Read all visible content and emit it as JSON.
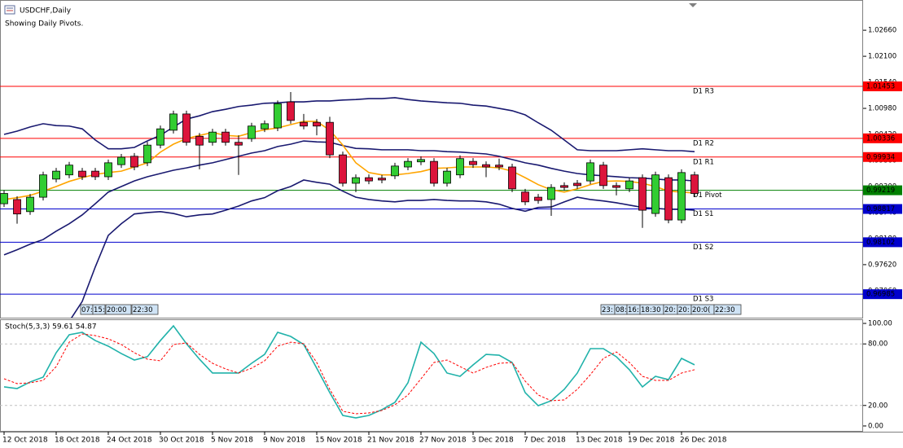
{
  "window": {
    "symbol_label": "USDCHF,Daily",
    "pivot_note": "Showing Daily Pivots."
  },
  "time_markers_left": [
    "07:",
    "15:",
    "20:00",
    "22:30"
  ],
  "time_markers_right": [
    "23:",
    "08:",
    "16:",
    "18:30",
    "20:",
    "20:",
    "20:0(",
    "22:30"
  ],
  "chart_data": [
    {
      "type": "candlestick",
      "categories": [
        "12 Oct 2018",
        null,
        null,
        null,
        "18 Oct 2018",
        null,
        null,
        null,
        "24 Oct 2018",
        null,
        null,
        null,
        "30 Oct 2018",
        null,
        null,
        null,
        "5 Nov 2018",
        null,
        null,
        null,
        "9 Nov 2018",
        null,
        null,
        null,
        "15 Nov 2018",
        null,
        null,
        null,
        "21 Nov 2018",
        null,
        null,
        null,
        "27 Nov 2018",
        null,
        null,
        null,
        "3 Dec 2018",
        null,
        null,
        null,
        "7 Dec 2018",
        null,
        null,
        null,
        "13 Dec 2018",
        null,
        null,
        null,
        "19 Dec 2018",
        null,
        null,
        null,
        "26 Dec 2018",
        null
      ],
      "open": [
        0.9893,
        0.9902,
        0.9876,
        0.9907,
        0.9946,
        0.9955,
        0.9963,
        0.9963,
        0.9951,
        0.9977,
        0.9995,
        0.9981,
        1.0019,
        1.0051,
        1.0086,
        1.0038,
        1.0025,
        1.0047,
        1.0025,
        1.0033,
        1.0054,
        1.0056,
        1.0112,
        1.0068,
        1.0068,
        1.0068,
        0.9998,
        0.9937,
        0.9949,
        0.9948,
        0.9953,
        0.9972,
        0.9983,
        0.9984,
        0.9937,
        0.9955,
        0.9984,
        0.9977,
        0.9976,
        0.9972,
        0.9918,
        0.9907,
        0.9902,
        0.9932,
        0.9937,
        0.9942,
        0.9976,
        0.9932,
        0.9925,
        0.9949,
        0.9872,
        0.9949,
        0.9858,
        0.9955
      ],
      "high": [
        0.9922,
        0.9909,
        0.9914,
        0.9962,
        0.997,
        0.9983,
        0.997,
        0.997,
        0.9988,
        1.0,
        1.0002,
        1.0026,
        1.0061,
        1.0093,
        1.0093,
        1.0045,
        1.0054,
        1.0054,
        1.004,
        1.0067,
        1.0072,
        1.0115,
        1.0133,
        1.0086,
        1.0075,
        1.008,
        1.0005,
        0.9956,
        0.9956,
        0.9955,
        0.9981,
        0.9991,
        0.9995,
        0.9991,
        0.997,
        0.9997,
        0.9991,
        0.9984,
        0.999,
        0.9979,
        0.9925,
        0.9914,
        0.9935,
        0.9939,
        0.9944,
        0.9988,
        0.9983,
        0.9939,
        0.9949,
        0.9956,
        0.9962,
        0.9956,
        0.9967,
        0.9962
      ],
      "low": [
        0.9886,
        0.985,
        0.9869,
        0.99,
        0.9939,
        0.9948,
        0.9944,
        0.9944,
        0.9944,
        0.997,
        0.9965,
        0.9974,
        1.0012,
        1.0044,
        1.0018,
        0.9967,
        1.0018,
        1.0018,
        0.9955,
        1.0026,
        1.0047,
        1.0049,
        1.0065,
        1.0053,
        1.004,
        0.9991,
        0.993,
        0.9918,
        0.9935,
        0.9937,
        0.9946,
        0.9965,
        0.9976,
        0.993,
        0.993,
        0.9948,
        0.997,
        0.995,
        0.9965,
        0.9918,
        0.989,
        0.9893,
        0.9867,
        0.9921,
        0.9925,
        0.9935,
        0.9925,
        0.9911,
        0.9918,
        0.9841,
        0.9865,
        0.9851,
        0.9851,
        0.9908
      ],
      "close": [
        0.9915,
        0.9871,
        0.9907,
        0.9955,
        0.9963,
        0.9976,
        0.9951,
        0.9951,
        0.9981,
        0.9993,
        0.9972,
        1.0019,
        1.0054,
        1.0086,
        1.0025,
        1.0019,
        1.0047,
        1.0025,
        1.0019,
        1.006,
        1.0065,
        1.0108,
        1.0072,
        1.006,
        1.006,
        0.9998,
        0.9937,
        0.9949,
        0.9942,
        0.9944,
        0.9974,
        0.9984,
        0.9988,
        0.9937,
        0.9963,
        0.999,
        0.9977,
        0.9972,
        0.9972,
        0.9925,
        0.9897,
        0.99,
        0.9928,
        0.9928,
        0.9932,
        0.9981,
        0.9932,
        0.9928,
        0.9942,
        0.9879,
        0.9955,
        0.9858,
        0.996,
        0.9915
      ],
      "up_color": "#32cd32",
      "down_color": "#dc143c",
      "overlays": [
        {
          "color": "#191970",
          "values": [
            1.0042,
            1.0049,
            1.0058,
            1.0065,
            1.0061,
            1.006,
            1.0054,
            1.003,
            1.0011,
            1.0011,
            1.0014,
            1.0028,
            1.004,
            1.0058,
            1.0075,
            1.0082,
            1.0091,
            1.0096,
            1.0102,
            1.0105,
            1.0109,
            1.011,
            1.0112,
            1.0112,
            1.0114,
            1.0114,
            1.0116,
            1.0117,
            1.0119,
            1.0119,
            1.0121,
            1.0117,
            1.0114,
            1.0112,
            1.011,
            1.0109,
            1.0105,
            1.0103,
            1.0098,
            1.0093,
            1.0084,
            1.0067,
            1.0051,
            1.003,
            1.0009,
            1.0007,
            1.0007,
            1.0007,
            1.0009,
            1.0011,
            1.0009,
            1.0007,
            1.0007,
            1.0005
          ]
        },
        {
          "color": "#191970",
          "values": [
            0.9783,
            0.9794,
            0.9806,
            0.9816,
            0.9834,
            0.985,
            0.9869,
            0.9893,
            0.9918,
            0.993,
            0.9942,
            0.9951,
            0.9958,
            0.9965,
            0.997,
            0.9976,
            0.9981,
            0.9988,
            0.9995,
            1.0002,
            1.0007,
            1.0016,
            1.0021,
            1.0028,
            1.0026,
            1.0025,
            1.0018,
            1.0012,
            1.0011,
            1.0009,
            1.0009,
            1.0009,
            1.0007,
            1.0007,
            1.0005,
            1.0004,
            1.0002,
            1.0,
            0.9995,
            0.9988,
            0.9981,
            0.9976,
            0.9969,
            0.9963,
            0.9958,
            0.9955,
            0.9953,
            0.9951,
            0.9949,
            0.9948,
            0.9946,
            0.9944,
            0.9944,
            0.9942
          ]
        },
        {
          "color": "#191970",
          "values": [
            0.9524,
            0.9538,
            0.9554,
            0.9568,
            0.9606,
            0.964,
            0.9683,
            0.9757,
            0.9825,
            0.985,
            0.9871,
            0.9874,
            0.9876,
            0.9872,
            0.9865,
            0.9869,
            0.9871,
            0.9879,
            0.9888,
            0.9899,
            0.9906,
            0.9921,
            0.993,
            0.9944,
            0.9939,
            0.9935,
            0.992,
            0.9907,
            0.9902,
            0.9899,
            0.9897,
            0.99,
            0.99,
            0.9902,
            0.99,
            0.9899,
            0.9899,
            0.9897,
            0.9892,
            0.9883,
            0.9877,
            0.9885,
            0.9886,
            0.9897,
            0.9907,
            0.9902,
            0.9899,
            0.9895,
            0.989,
            0.9885,
            0.9883,
            0.9881,
            0.9881,
            0.9879
          ]
        },
        {
          "color": "#ffa500",
          "values": [
            0.9902,
            0.9906,
            0.9911,
            0.992,
            0.993,
            0.9941,
            0.9949,
            0.9956,
            0.996,
            0.9963,
            0.9972,
            0.9981,
            1.0004,
            1.0021,
            1.0033,
            1.004,
            1.0046,
            1.004,
            1.0038,
            1.0046,
            1.0052,
            1.0056,
            1.0063,
            1.007,
            1.007,
            1.0051,
            1.0019,
            0.9981,
            0.996,
            0.9955,
            0.9955,
            0.9958,
            0.9962,
            0.9969,
            0.997,
            0.9972,
            0.9972,
            0.9972,
            0.997,
            0.9963,
            0.9949,
            0.9934,
            0.9923,
            0.9918,
            0.9925,
            0.9934,
            0.9941,
            0.9942,
            0.9941,
            0.9937,
            0.993,
            0.992,
            0.9918,
            0.9916
          ]
        }
      ],
      "levels": [
        {
          "label": "D1 R3",
          "value": 1.01453,
          "color": "#ff0000"
        },
        {
          "label": "D1 R2",
          "value": 1.00336,
          "color": "#ff0000"
        },
        {
          "label": "D1 R1",
          "value": 0.99934,
          "color": "#ff0000"
        },
        {
          "label": "D1 Pivot",
          "value": 0.99219,
          "color": "#008000"
        },
        {
          "label": "D1 S1",
          "value": 0.98817,
          "color": "#0000cd"
        },
        {
          "label": "D1 S2",
          "value": 0.98102,
          "color": "#0000cd"
        },
        {
          "label": "D1 S3",
          "value": 0.96985,
          "color": "#0000cd"
        }
      ],
      "ylim": [
        0.9648,
        1.0331
      ],
      "yticks": [
        {
          "value": 1.0266,
          "label": "1.02660"
        },
        {
          "value": 1.021,
          "label": "1.02100"
        },
        {
          "value": 1.0154,
          "label": "1.01540"
        },
        {
          "value": 1.0098,
          "label": "1.00980"
        },
        {
          "value": 1.0042,
          "label": "1.00420"
        },
        {
          "value": 0.9986,
          "label": "0.99860"
        },
        {
          "value": 0.993,
          "label": "0.99300"
        },
        {
          "value": 0.9874,
          "label": "0.98740"
        },
        {
          "value": 0.9818,
          "label": "0.98180"
        },
        {
          "value": 0.9762,
          "label": "0.97620"
        },
        {
          "value": 0.9706,
          "label": "0.97060"
        }
      ]
    },
    {
      "type": "line",
      "title": "Stoch(5,3,3) 59.61 54.87",
      "series": [
        {
          "color": "#20b2aa",
          "dashed": false,
          "values": [
            38.1,
            36.5,
            42.9,
            47.6,
            71.4,
            88.9,
            91.3,
            83.3,
            77.8,
            70.6,
            64.3,
            67.5,
            83.3,
            97.6,
            80.2,
            65.1,
            51.6,
            51.6,
            51.6,
            61.1,
            69.8,
            91.3,
            87.3,
            79.4,
            56.3,
            32.5,
            10.3,
            7.9,
            10.3,
            15.9,
            23.0,
            42.1,
            81.7,
            70.6,
            51.6,
            48.4,
            59.5,
            69.8,
            69.0,
            61.9,
            32.5,
            19.8,
            24.6,
            35.7,
            51.6,
            75.4,
            75.4,
            67.5,
            54.8,
            38.1,
            48.4,
            45.2,
            65.9,
            59.61
          ]
        },
        {
          "color": "#ff0000",
          "dashed": true,
          "values": [
            46.0,
            41.3,
            42.1,
            44.4,
            57.9,
            81.7,
            89.7,
            88.1,
            84.9,
            79.4,
            71.4,
            65.1,
            63.5,
            79.4,
            81.0,
            69.8,
            61.1,
            55.6,
            51.6,
            56.3,
            63.5,
            77.8,
            81.7,
            80.2,
            61.9,
            35.7,
            14.3,
            11.9,
            12.7,
            15.1,
            20.6,
            30.2,
            46.0,
            61.9,
            64.3,
            57.9,
            51.6,
            57.1,
            61.1,
            61.9,
            43.7,
            30.2,
            24.6,
            25.4,
            35.7,
            50.0,
            65.9,
            72.2,
            61.9,
            48.4,
            44.4,
            44.4,
            51.6,
            54.87
          ]
        }
      ],
      "levels": [
        80,
        20
      ],
      "ylim": [
        -5.6,
        104
      ],
      "yticks": [
        {
          "value": 100,
          "label": "100.00"
        },
        {
          "value": 80,
          "label": "80.00"
        },
        {
          "value": 20,
          "label": "20.00"
        },
        {
          "value": 0,
          "label": "0.00"
        }
      ]
    }
  ]
}
